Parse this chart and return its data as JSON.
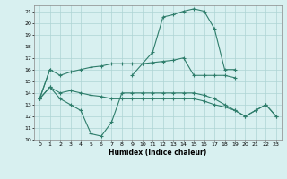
{
  "xlabel": "Humidex (Indice chaleur)",
  "x_values": [
    0,
    1,
    2,
    3,
    4,
    5,
    6,
    7,
    8,
    9,
    10,
    11,
    12,
    13,
    14,
    15,
    16,
    17,
    18,
    19,
    20,
    21,
    22,
    23
  ],
  "y_main": [
    13.5,
    16.0,
    null,
    null,
    null,
    null,
    null,
    null,
    null,
    15.5,
    16.5,
    17.5,
    20.5,
    20.7,
    21.0,
    21.2,
    21.0,
    19.5,
    16.0,
    16.0,
    null,
    null,
    null,
    null
  ],
  "y_upper": [
    13.5,
    16.0,
    15.5,
    15.8,
    16.0,
    16.2,
    16.3,
    16.5,
    16.5,
    16.5,
    16.5,
    16.6,
    16.7,
    16.8,
    17.0,
    15.5,
    15.5,
    15.5,
    15.5,
    15.3,
    null,
    null,
    null,
    null
  ],
  "y_dip": [
    13.5,
    14.5,
    13.5,
    13.0,
    12.5,
    10.5,
    10.3,
    11.5,
    14.0,
    14.0,
    14.0,
    14.0,
    14.0,
    14.0,
    14.0,
    14.0,
    13.8,
    13.5,
    13.0,
    12.5,
    12.0,
    12.5,
    13.0,
    12.0
  ],
  "y_flat": [
    13.5,
    14.5,
    14.0,
    14.2,
    14.0,
    13.8,
    13.7,
    13.5,
    13.5,
    13.5,
    13.5,
    13.5,
    13.5,
    13.5,
    13.5,
    13.5,
    13.3,
    13.0,
    12.8,
    12.5,
    12.0,
    12.5,
    13.0,
    12.0
  ],
  "ylim": [
    10,
    21.5
  ],
  "xlim": [
    -0.5,
    23.5
  ],
  "yticks": [
    10,
    11,
    12,
    13,
    14,
    15,
    16,
    17,
    18,
    19,
    20,
    21
  ],
  "xticks": [
    0,
    1,
    2,
    3,
    4,
    5,
    6,
    7,
    8,
    9,
    10,
    11,
    12,
    13,
    14,
    15,
    16,
    17,
    18,
    19,
    20,
    21,
    22,
    23
  ],
  "line_color": "#2E7D6B",
  "bg_color": "#d8f0f0",
  "grid_color": "#aed4d4"
}
